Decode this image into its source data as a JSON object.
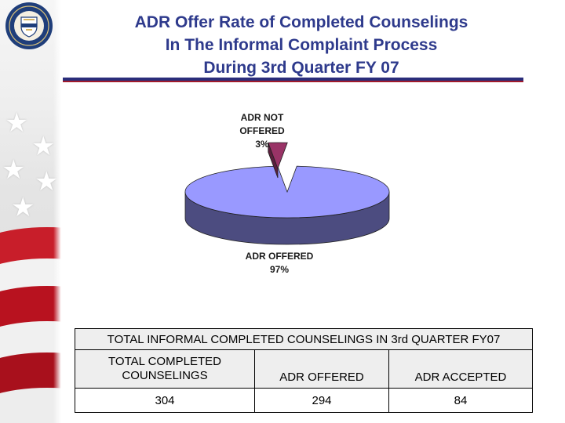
{
  "title_lines": [
    "ADR Offer Rate of Completed Counselings",
    "In The Informal Complaint Process",
    "During 3rd Quarter FY 07"
  ],
  "seal_icon": "treasury-seal-icon",
  "colors": {
    "title": "#2e3a8c",
    "offered_slice": "#9999ff",
    "offered_slice_side": "#4c4c80",
    "not_offered_slice": "#993366",
    "rule_blue": "#2a2d7a",
    "rule_red": "#a01a2c"
  },
  "chart_data": {
    "type": "pie",
    "title": "ADR Offer Rate of Completed Counselings In The Informal Complaint Process During 3rd Quarter FY 07",
    "slices": [
      {
        "label": "ADR OFFERED",
        "value": 97,
        "percent_label": "97%"
      },
      {
        "label": "ADR NOT OFFERED",
        "value": 3,
        "percent_label": "3%"
      }
    ],
    "style": "3d-exploded",
    "legend": "none"
  },
  "table": {
    "caption": "TOTAL INFORMAL COMPLETED COUNSELINGS IN 3rd QUARTER FY07",
    "headers": [
      "TOTAL COMPLETED COUNSELINGS",
      "ADR OFFERED",
      "ADR ACCEPTED"
    ],
    "values": [
      "304",
      "294",
      "84"
    ]
  }
}
